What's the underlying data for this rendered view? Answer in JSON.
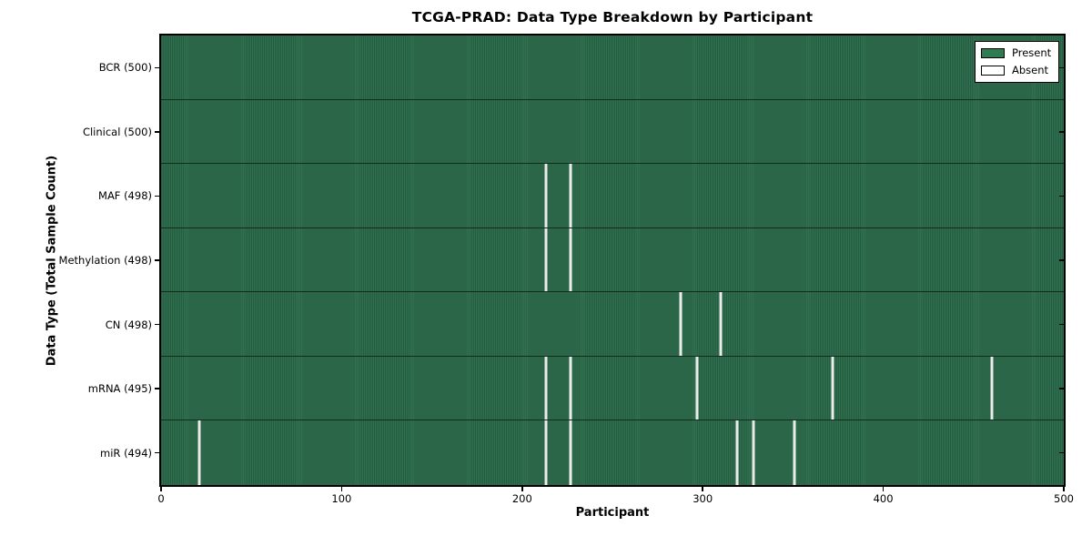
{
  "chart_data": {
    "type": "heatmap",
    "title": "TCGA-PRAD: Data Type Breakdown by Participant",
    "xlabel": "Participant",
    "ylabel": "Data Type (Total Sample Count)",
    "xlim": [
      0,
      500
    ],
    "x_ticks": [
      0,
      100,
      200,
      300,
      400,
      500
    ],
    "grid": "row separators only",
    "legend_position": "upper right",
    "legend": [
      {
        "label": "Present",
        "color": "#2e7d52"
      },
      {
        "label": "Absent",
        "color": "#ffffff"
      }
    ],
    "rows": [
      {
        "label": "BCR (500)",
        "total_samples": 500,
        "absent_participants": []
      },
      {
        "label": "Clinical (500)",
        "total_samples": 500,
        "absent_participants": []
      },
      {
        "label": "MAF (498)",
        "total_samples": 498,
        "absent_participants": [
          213,
          227
        ]
      },
      {
        "label": "Methylation (498)",
        "total_samples": 498,
        "absent_participants": [
          213,
          227
        ]
      },
      {
        "label": "CN (498)",
        "total_samples": 498,
        "absent_participants": [
          288,
          310
        ]
      },
      {
        "label": "mRNA (495)",
        "total_samples": 495,
        "absent_participants": [
          213,
          227,
          297,
          372,
          460
        ]
      },
      {
        "label": "miR (494)",
        "total_samples": 494,
        "absent_participants": [
          21,
          213,
          227,
          319,
          328,
          351
        ]
      }
    ],
    "colors": {
      "present_fill": "#2f6f4f",
      "present_stripe": "#255d42",
      "absent_line": "#ebebeb",
      "row_separator": "#142a1c",
      "axis": "#000000",
      "background": "#ffffff"
    }
  }
}
